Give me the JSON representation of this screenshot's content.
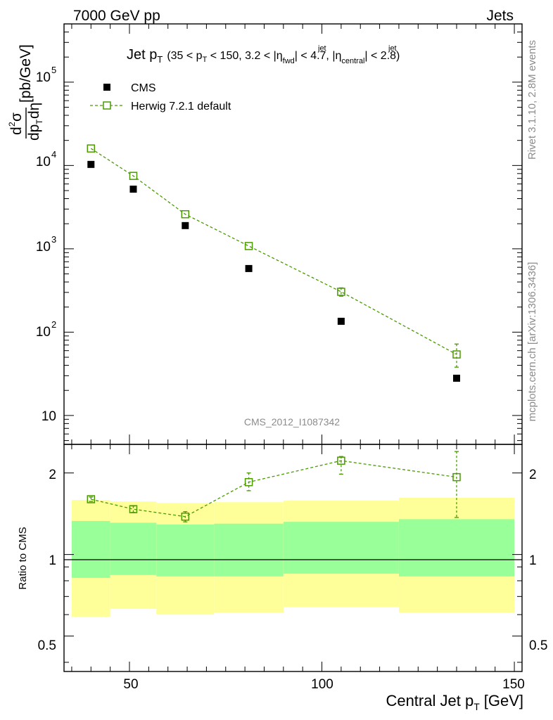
{
  "header": {
    "left": "7000 GeV pp",
    "right": "Jets"
  },
  "side_labels": {
    "rivet": "Rivet 3.1.10,  2.8M events",
    "mcplots": "mcplots.cern.ch [arXiv:1306.3436]"
  },
  "chart_data": [
    {
      "type": "scatter",
      "title": "Jet p_T (35 < p_T < 150, 3.2 < |η_fwd^jet| < 4.7, |η_central^jet| < 2.8)",
      "title_parts": {
        "jet": "Jet p",
        "T": "T",
        "open": "(35 < p",
        "mid1": " < 150, 3.2 < |η",
        "fwd": "fwd",
        "jetsup": "jet",
        "mid2": "| < 4.7, |η",
        "central": "central",
        "close": "| < 2.8)"
      },
      "analysis_label": "CMS_2012_I1087342",
      "ylabel": "d²σ / dp_T dη [pb/GeV]",
      "ylabel_parts": {
        "d": "d",
        "two": "2",
        "sigma": "σ",
        "dp": "dp",
        "T": "T",
        "deta": "dη",
        "unit": "[pb/GeV]"
      },
      "y_scale": "log",
      "ylim": [
        4.5,
        500000
      ],
      "xlim": [
        33,
        152
      ],
      "y_tick_labels": [
        "10",
        "10^2",
        "10^3",
        "10^4",
        "10^5"
      ],
      "legend_position": "top-left",
      "series": [
        {
          "name": "CMS",
          "marker": "filled-square",
          "color": "#000000",
          "x": [
            40,
            51,
            64.5,
            81,
            105,
            135
          ],
          "y": [
            10300,
            5200,
            1900,
            580,
            135,
            28
          ]
        },
        {
          "name": "Herwig 7.2.1 default",
          "marker": "open-square",
          "line": "dashed",
          "color": "#4a9a00",
          "x": [
            40,
            51,
            64.5,
            81,
            105,
            135
          ],
          "y": [
            16000,
            7500,
            2600,
            1080,
            305,
            54
          ],
          "y_err_low": [
            16000,
            7500,
            2600,
            1080,
            270,
            38
          ],
          "y_err_high": [
            16000,
            7500,
            2600,
            1080,
            340,
            72
          ]
        }
      ]
    },
    {
      "type": "scatter",
      "ylabel": "Ratio to CMS",
      "xlabel": "Central Jet p_T [GeV]",
      "xlabel_parts": {
        "main": "Central Jet p",
        "sub": "T",
        "unit": "[GeV]"
      },
      "xlim": [
        33,
        152
      ],
      "ylim": [
        0.37,
        2.55
      ],
      "x_ticks": [
        50,
        100,
        150
      ],
      "y_ticks": [
        0.5,
        1,
        2
      ],
      "reference_line": 1,
      "bands": [
        {
          "x_low": 35,
          "x_high": 45,
          "yellow_low": 0.59,
          "yellow_high": 1.59,
          "green_low": 0.82,
          "green_high": 1.33
        },
        {
          "x_low": 45,
          "x_high": 57,
          "yellow_low": 0.63,
          "yellow_high": 1.57,
          "green_low": 0.84,
          "green_high": 1.31
        },
        {
          "x_low": 57,
          "x_high": 72,
          "yellow_low": 0.6,
          "yellow_high": 1.55,
          "green_low": 0.83,
          "green_high": 1.29
        },
        {
          "x_low": 72,
          "x_high": 90,
          "yellow_low": 0.61,
          "yellow_high": 1.56,
          "green_low": 0.83,
          "green_high": 1.3
        },
        {
          "x_low": 90,
          "x_high": 120,
          "yellow_low": 0.64,
          "yellow_high": 1.58,
          "green_low": 0.85,
          "green_high": 1.32
        },
        {
          "x_low": 120,
          "x_high": 150,
          "yellow_low": 0.61,
          "yellow_high": 1.62,
          "green_low": 0.83,
          "green_high": 1.35
        }
      ],
      "series": [
        {
          "name": "Herwig 7.2.1 default",
          "marker": "open-square",
          "line": "dashed",
          "color": "#4a9a00",
          "x": [
            40,
            51,
            64.5,
            81,
            105,
            135
          ],
          "y": [
            1.6,
            1.47,
            1.38,
            1.85,
            2.22,
            1.93
          ],
          "y_err_low": [
            1.57,
            1.43,
            1.32,
            1.72,
            1.98,
            1.37
          ],
          "y_err_high": [
            1.63,
            1.51,
            1.44,
            2.0,
            2.3,
            2.4
          ]
        }
      ]
    }
  ]
}
